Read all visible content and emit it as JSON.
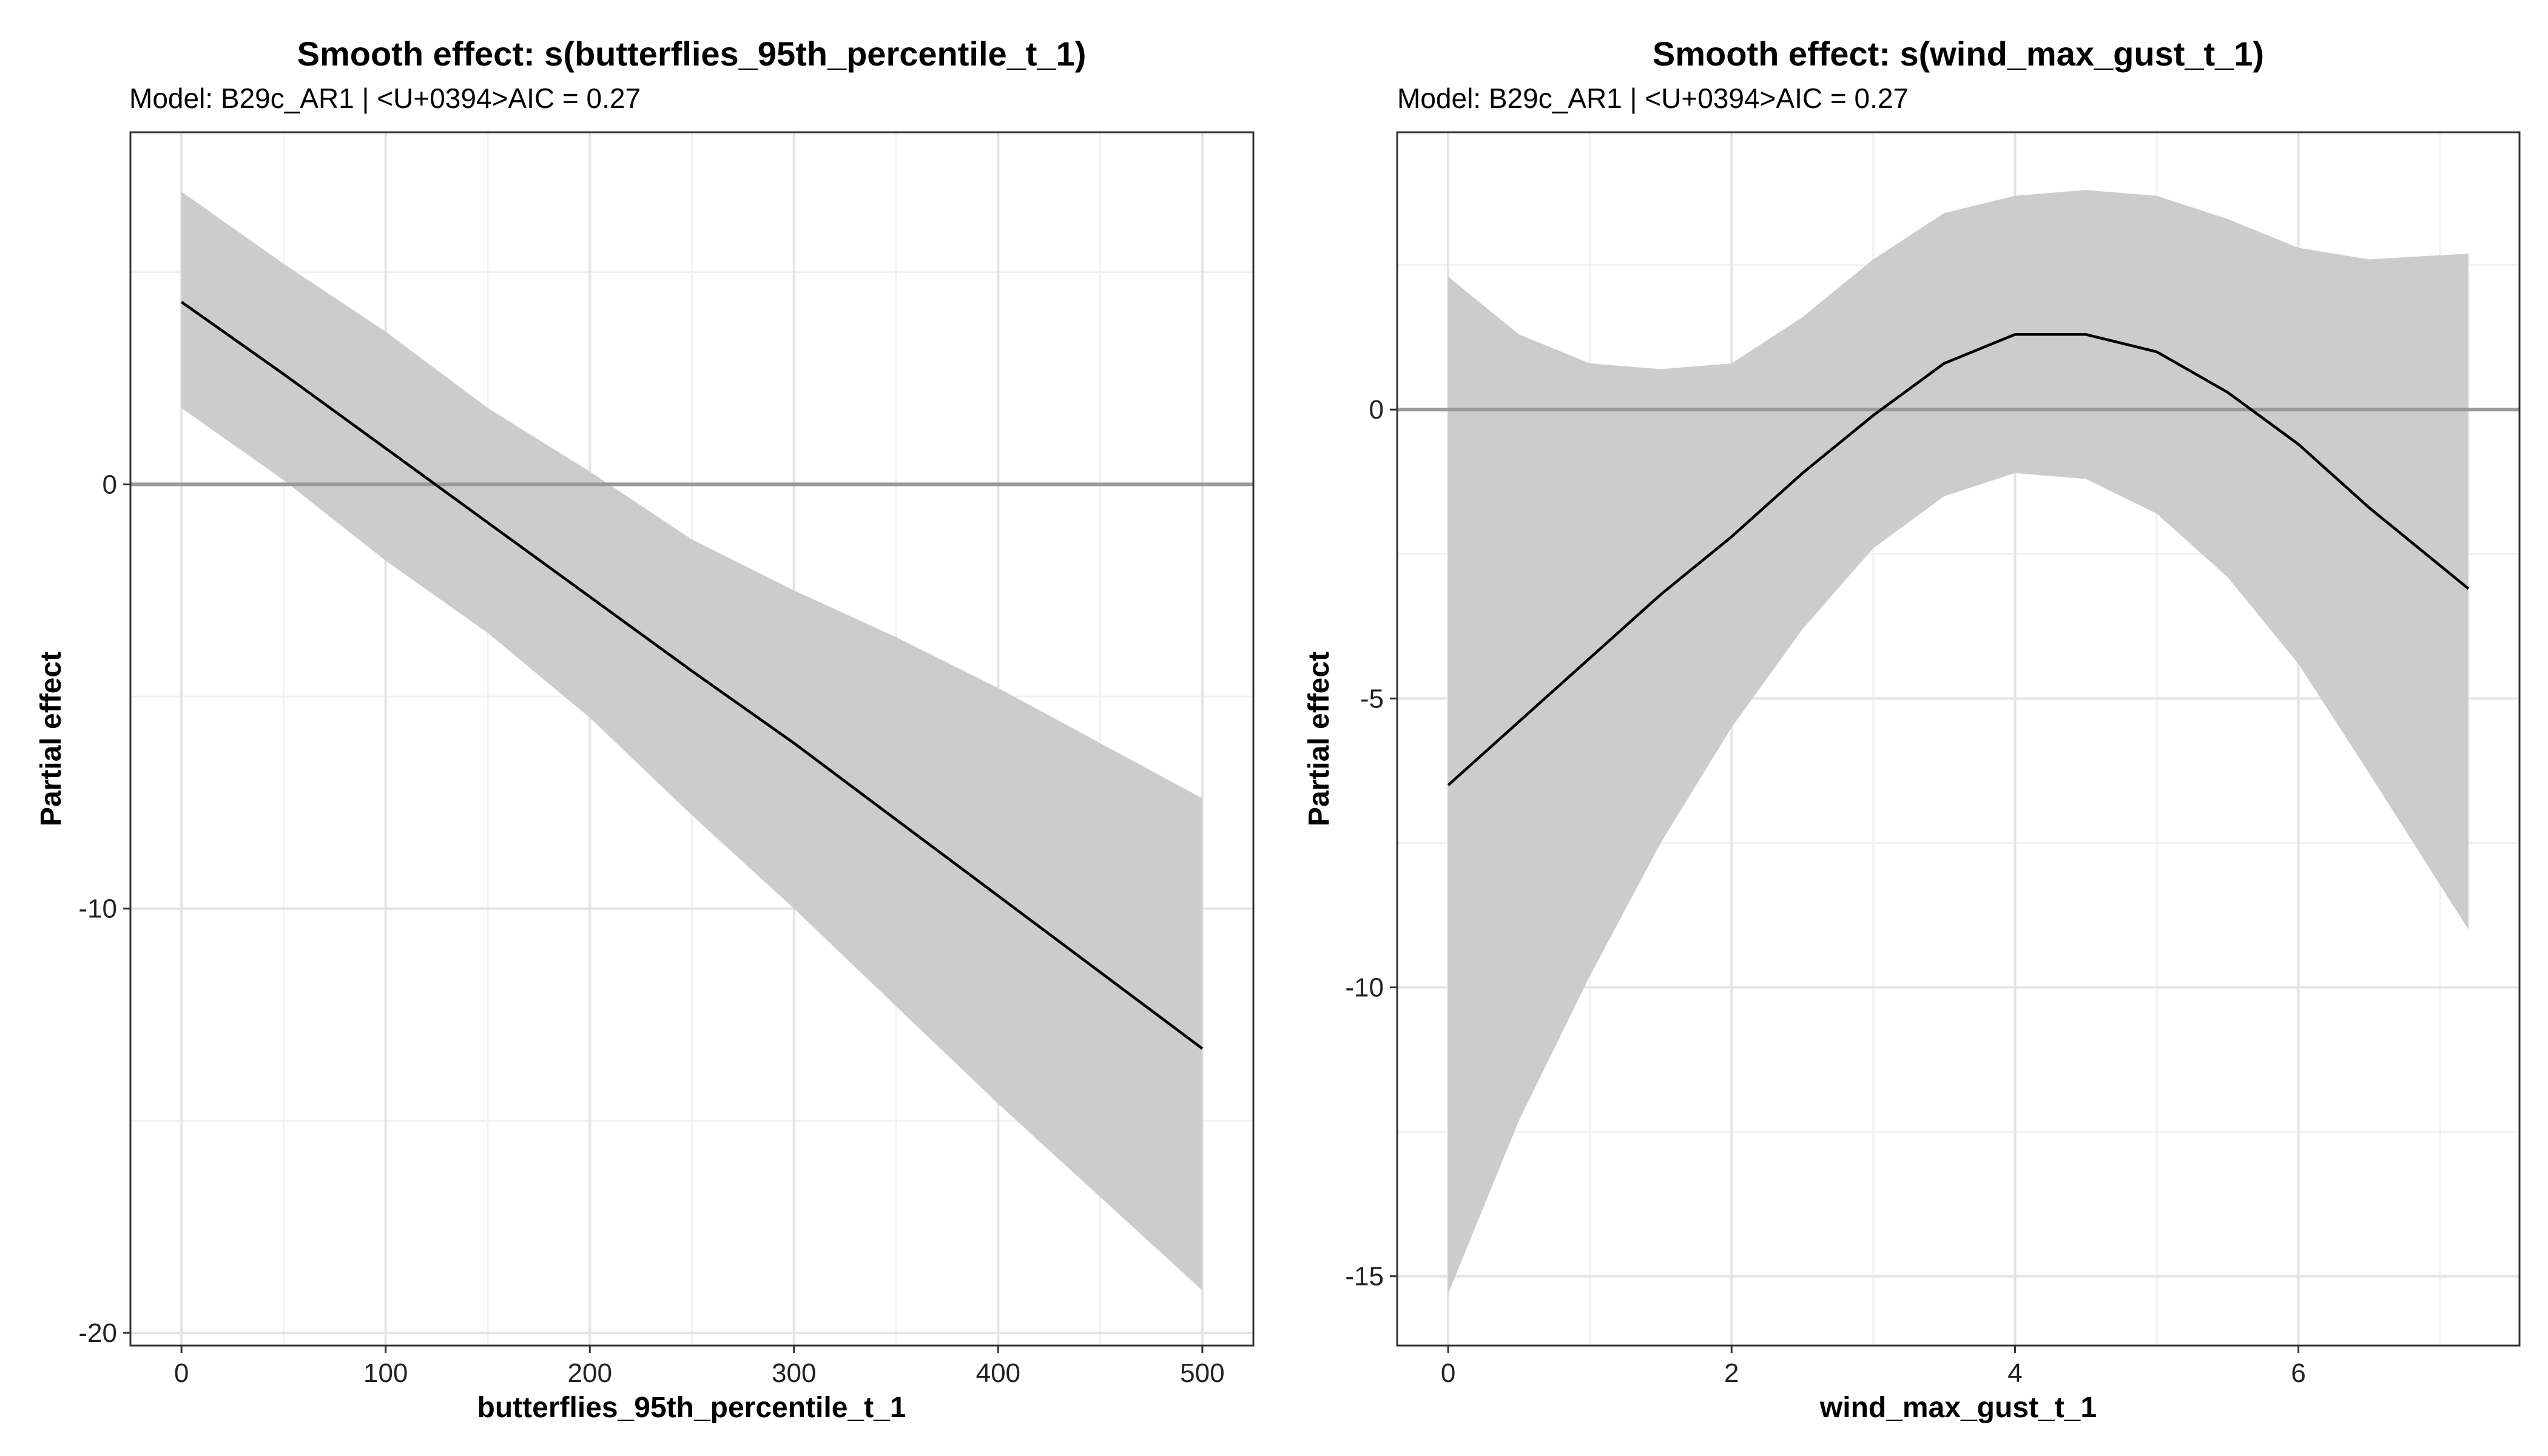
{
  "chart_data": [
    {
      "type": "line",
      "title": "Smooth effect: s(butterflies_95th_percentile_t_1)",
      "subtitle": "Model: B29c_AR1 | <U+0394>AIC = 0.27",
      "xlabel": "butterflies_95th_percentile_t_1",
      "ylabel": "Partial effect",
      "xlim": [
        -25,
        525
      ],
      "ylim": [
        -20.3,
        8.3
      ],
      "xticks": [
        0,
        100,
        200,
        300,
        400,
        500
      ],
      "yticks": [
        -20,
        -10,
        0
      ],
      "grid": true,
      "reference_line_y": 0,
      "series": [
        {
          "x": [
            0,
            50,
            100,
            150,
            200,
            250,
            300,
            350,
            400,
            450,
            500
          ],
          "values": [
            4.3,
            2.6,
            0.85,
            -0.9,
            -2.65,
            -4.4,
            -6.1,
            -7.9,
            -9.7,
            -11.5,
            -13.3
          ],
          "lower": [
            1.8,
            0.1,
            -1.8,
            -3.5,
            -5.5,
            -7.8,
            -10.0,
            -12.3,
            -14.6,
            -16.8,
            -19.0
          ],
          "upper": [
            6.9,
            5.2,
            3.6,
            1.8,
            0.3,
            -1.3,
            -2.5,
            -3.6,
            -4.8,
            -6.1,
            -7.4
          ]
        }
      ]
    },
    {
      "type": "line",
      "title": "Smooth effect: s(wind_max_gust_t_1)",
      "subtitle": "Model: B29c_AR1 | <U+0394>AIC = 0.27",
      "xlabel": "wind_max_gust_t_1",
      "ylabel": "Partial effect",
      "xlim": [
        -0.36,
        7.56
      ],
      "ylim": [
        -16.2,
        4.8
      ],
      "xticks": [
        0,
        2,
        4,
        6
      ],
      "yticks": [
        -15,
        -10,
        -5,
        0
      ],
      "grid": true,
      "reference_line_y": 0,
      "series": [
        {
          "x": [
            0,
            0.5,
            1.0,
            1.5,
            2.0,
            2.5,
            3.0,
            3.5,
            4.0,
            4.5,
            5.0,
            5.5,
            6.0,
            6.5,
            7.2
          ],
          "values": [
            -6.5,
            -5.4,
            -4.3,
            -3.2,
            -2.2,
            -1.1,
            -0.1,
            0.8,
            1.3,
            1.3,
            1.0,
            0.3,
            -0.6,
            -1.7,
            -3.1
          ],
          "lower": [
            -15.3,
            -12.3,
            -9.8,
            -7.5,
            -5.5,
            -3.8,
            -2.4,
            -1.5,
            -1.1,
            -1.2,
            -1.8,
            -2.9,
            -4.4,
            -6.3,
            -9.0
          ],
          "upper": [
            2.3,
            1.3,
            0.8,
            0.7,
            0.8,
            1.6,
            2.6,
            3.4,
            3.7,
            3.8,
            3.7,
            3.3,
            2.8,
            2.6,
            2.7
          ]
        }
      ]
    }
  ]
}
